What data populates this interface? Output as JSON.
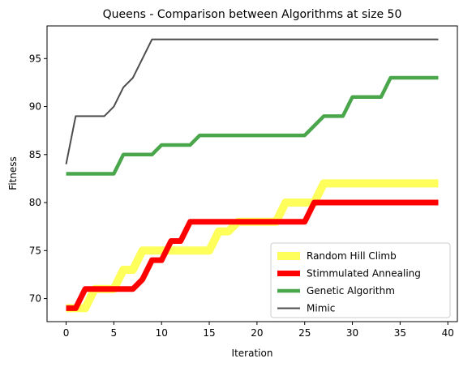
{
  "chart_data": {
    "type": "line",
    "title": "Queens - Comparison between Algorithms at size 50",
    "xlabel": "Iteration",
    "ylabel": "Fitness",
    "xlim": [
      -2,
      41
    ],
    "ylim": [
      67.6,
      98.4
    ],
    "xticks": [
      0,
      5,
      10,
      15,
      20,
      25,
      30,
      35,
      40
    ],
    "yticks": [
      70,
      75,
      80,
      85,
      90,
      95
    ],
    "grid": false,
    "legend_position": "lower-right",
    "series": [
      {
        "name": "Random Hill Climb",
        "color": "#ffff33",
        "x": [
          0,
          1,
          2,
          3,
          4,
          5,
          6,
          7,
          8,
          9,
          10,
          11,
          12,
          13,
          14,
          15,
          16,
          17,
          18,
          19,
          20,
          21,
          22,
          23,
          24,
          25,
          26,
          27,
          28,
          29,
          30,
          31,
          32,
          33,
          34,
          35,
          36,
          37,
          38,
          39
        ],
        "y": [
          69,
          69,
          69,
          71,
          71,
          71,
          73,
          73,
          75,
          75,
          75,
          75,
          75,
          75,
          75,
          75,
          77,
          77,
          78,
          78,
          78,
          78,
          78,
          80,
          80,
          80,
          80,
          82,
          82,
          82,
          82,
          82,
          82,
          82,
          82,
          82,
          82,
          82,
          82,
          82
        ]
      },
      {
        "name": "Stimmulated Annealing",
        "color": "#ff0000",
        "x": [
          0,
          1,
          2,
          3,
          4,
          5,
          6,
          7,
          8,
          9,
          10,
          11,
          12,
          13,
          14,
          15,
          16,
          17,
          18,
          19,
          20,
          21,
          22,
          23,
          24,
          25,
          26,
          27,
          28,
          29,
          30,
          31,
          32,
          33,
          34,
          35,
          36,
          37,
          38,
          39
        ],
        "y": [
          69,
          69,
          71,
          71,
          71,
          71,
          71,
          71,
          72,
          74,
          74,
          76,
          76,
          78,
          78,
          78,
          78,
          78,
          78,
          78,
          78,
          78,
          78,
          78,
          78,
          78,
          80,
          80,
          80,
          80,
          80,
          80,
          80,
          80,
          80,
          80,
          80,
          80,
          80,
          80
        ]
      },
      {
        "name": "Genetic Algorithm",
        "color": "#4aa64a",
        "x": [
          0,
          1,
          2,
          3,
          4,
          5,
          6,
          7,
          8,
          9,
          10,
          11,
          12,
          13,
          14,
          15,
          16,
          17,
          18,
          19,
          20,
          21,
          22,
          23,
          24,
          25,
          26,
          27,
          28,
          29,
          30,
          31,
          32,
          33,
          34,
          35,
          36,
          37,
          38,
          39
        ],
        "y": [
          83,
          83,
          83,
          83,
          83,
          83,
          85,
          85,
          85,
          85,
          86,
          86,
          86,
          86,
          87,
          87,
          87,
          87,
          87,
          87,
          87,
          87,
          87,
          87,
          87,
          87,
          88,
          89,
          89,
          89,
          91,
          91,
          91,
          91,
          93,
          93,
          93,
          93,
          93,
          93
        ]
      },
      {
        "name": "Mimic",
        "color": "#4d4d4d",
        "x": [
          0,
          1,
          2,
          3,
          4,
          5,
          6,
          7,
          8,
          9,
          10,
          11,
          12,
          13,
          14,
          15,
          16,
          17,
          18,
          19,
          20,
          21,
          22,
          23,
          24,
          25,
          26,
          27,
          28,
          29,
          30,
          31,
          32,
          33,
          34,
          35,
          36,
          37,
          38,
          39
        ],
        "y": [
          84,
          89,
          89,
          89,
          89,
          90,
          92,
          93,
          95,
          97,
          97,
          97,
          97,
          97,
          97,
          97,
          97,
          97,
          97,
          97,
          97,
          97,
          97,
          97,
          97,
          97,
          97,
          97,
          97,
          97,
          97,
          97,
          97,
          97,
          97,
          97,
          97,
          97,
          97,
          97
        ]
      }
    ]
  }
}
